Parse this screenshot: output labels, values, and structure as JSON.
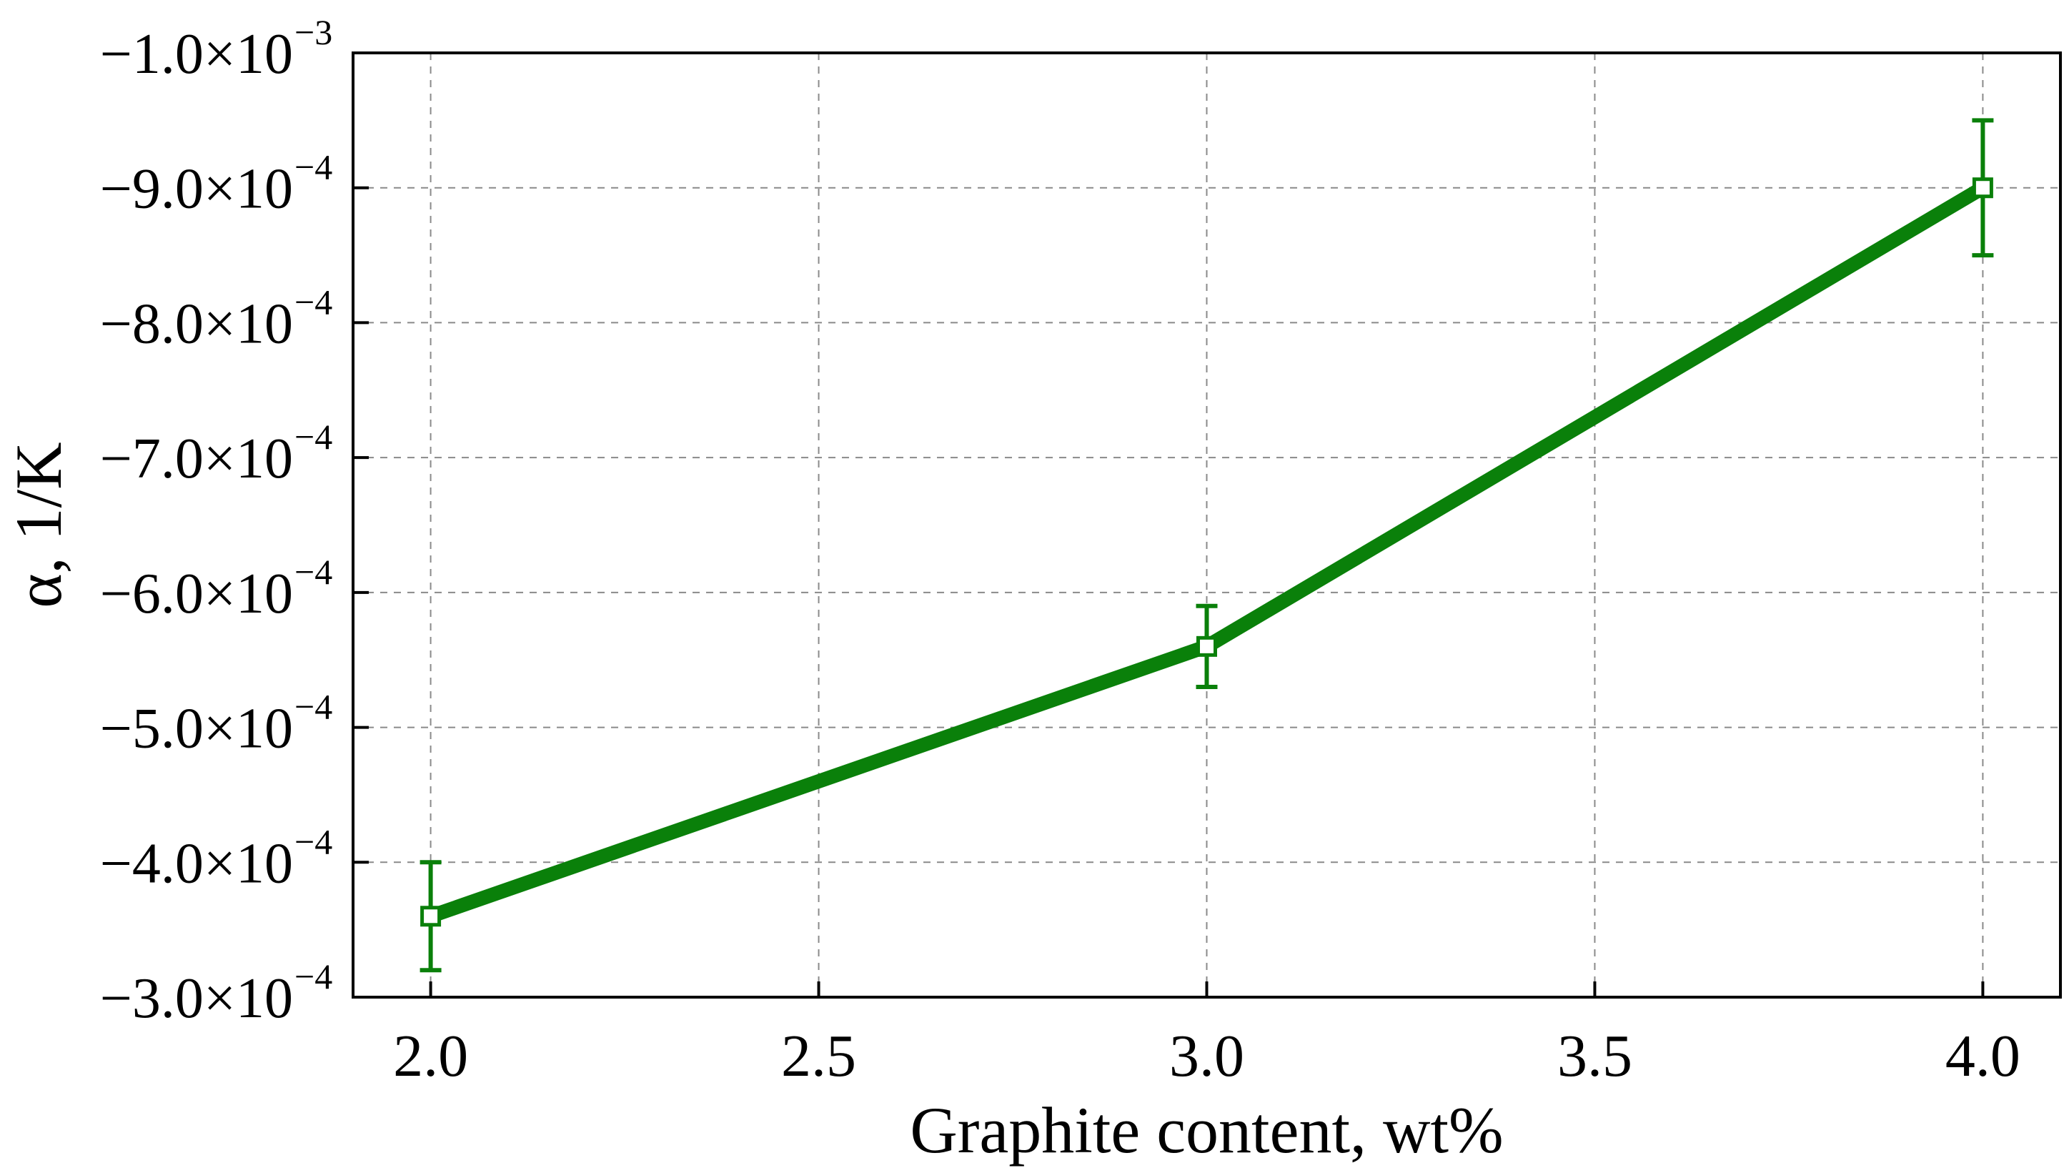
{
  "chart_data": {
    "type": "line",
    "title": "",
    "xlabel": "Graphite content, wt%",
    "ylabel": "α, 1/K",
    "xlim": [
      1.9,
      4.1
    ],
    "ylim": [
      -0.0003,
      -0.001
    ],
    "grid": true,
    "x_ticks": [
      {
        "value": 2.0,
        "label": "2.0"
      },
      {
        "value": 2.5,
        "label": "2.5"
      },
      {
        "value": 3.0,
        "label": "3.0"
      },
      {
        "value": 3.5,
        "label": "3.5"
      },
      {
        "value": 4.0,
        "label": "4.0"
      }
    ],
    "y_ticks": [
      {
        "value": -0.0003,
        "mantissa": "−3.0×10",
        "exponent": "−4"
      },
      {
        "value": -0.0004,
        "mantissa": "−4.0×10",
        "exponent": "−4"
      },
      {
        "value": -0.0005,
        "mantissa": "−5.0×10",
        "exponent": "−4"
      },
      {
        "value": -0.0006,
        "mantissa": "−6.0×10",
        "exponent": "−4"
      },
      {
        "value": -0.0007,
        "mantissa": "−7.0×10",
        "exponent": "−4"
      },
      {
        "value": -0.0008,
        "mantissa": "−8.0×10",
        "exponent": "−4"
      },
      {
        "value": -0.0009,
        "mantissa": "−9.0×10",
        "exponent": "−4"
      },
      {
        "value": -0.001,
        "mantissa": "−1.0×10",
        "exponent": "−3"
      }
    ],
    "series": [
      {
        "color": "#0a800a",
        "x": [
          2.0,
          3.0,
          4.0
        ],
        "y": [
          -0.00036,
          -0.00056,
          -0.0009
        ],
        "error": [
          4e-05,
          3e-05,
          5e-05
        ]
      }
    ]
  }
}
